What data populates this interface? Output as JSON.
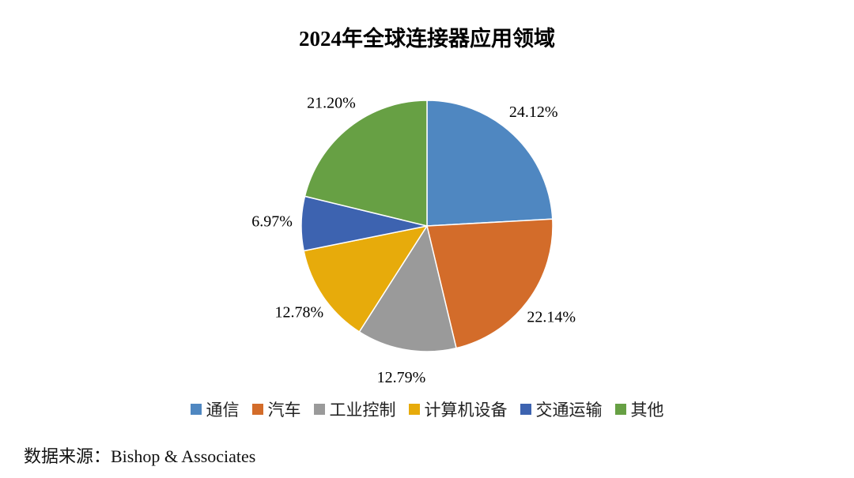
{
  "chart_data": {
    "type": "pie",
    "title": "2024年全球连接器应用领域",
    "categories": [
      "通信",
      "汽车",
      "工业控制",
      "计算机设备",
      "交通运输",
      "其他"
    ],
    "values": [
      24.12,
      22.14,
      12.79,
      12.78,
      6.97,
      21.2
    ],
    "value_labels": [
      "24.12%",
      "22.14%",
      "12.79%",
      "12.78%",
      "6.97%",
      "21.20%"
    ],
    "colors": [
      "#4f87c1",
      "#d36c2a",
      "#9a9a9a",
      "#e7ab0b",
      "#3d63b0",
      "#67a044"
    ],
    "legend": "bottom"
  },
  "source": "数据来源：Bishop & Associates"
}
